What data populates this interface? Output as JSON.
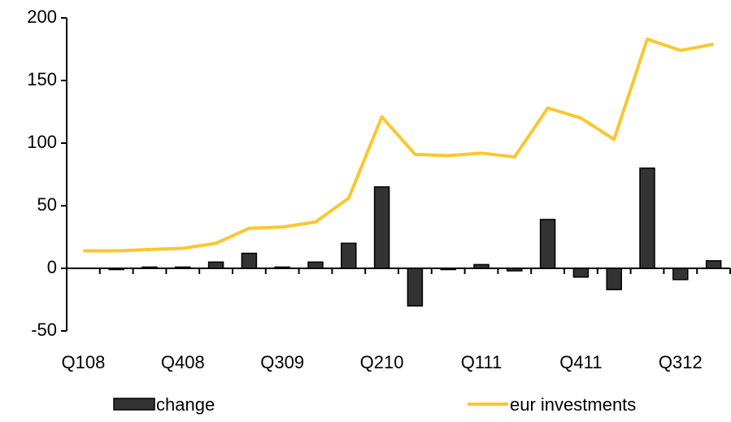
{
  "chart_data": {
    "type": "bar-line",
    "categories": [
      "Q108",
      null,
      null,
      "Q408",
      null,
      null,
      "Q309",
      null,
      null,
      "Q210",
      null,
      null,
      "Q111",
      null,
      null,
      "Q411",
      null,
      null,
      "Q312",
      null
    ],
    "series": [
      {
        "name": "change",
        "type": "bar",
        "color": "#333333",
        "values": [
          null,
          -1,
          1,
          1,
          5,
          12,
          1,
          5,
          20,
          65,
          -30,
          -1,
          3,
          -2,
          39,
          -7,
          -17,
          80,
          -9,
          6
        ]
      },
      {
        "name": "eur investments",
        "type": "line",
        "color": "#fcc630",
        "values": [
          14,
          14,
          15,
          16,
          20,
          32,
          33,
          37,
          56,
          121,
          91,
          90,
          92,
          89,
          128,
          120,
          103,
          183,
          174,
          179
        ]
      }
    ],
    "ylim": [
      -50,
      200
    ],
    "yticks": [
      -50,
      0,
      50,
      100,
      150,
      200
    ],
    "grid": false,
    "legend": "bottom"
  }
}
